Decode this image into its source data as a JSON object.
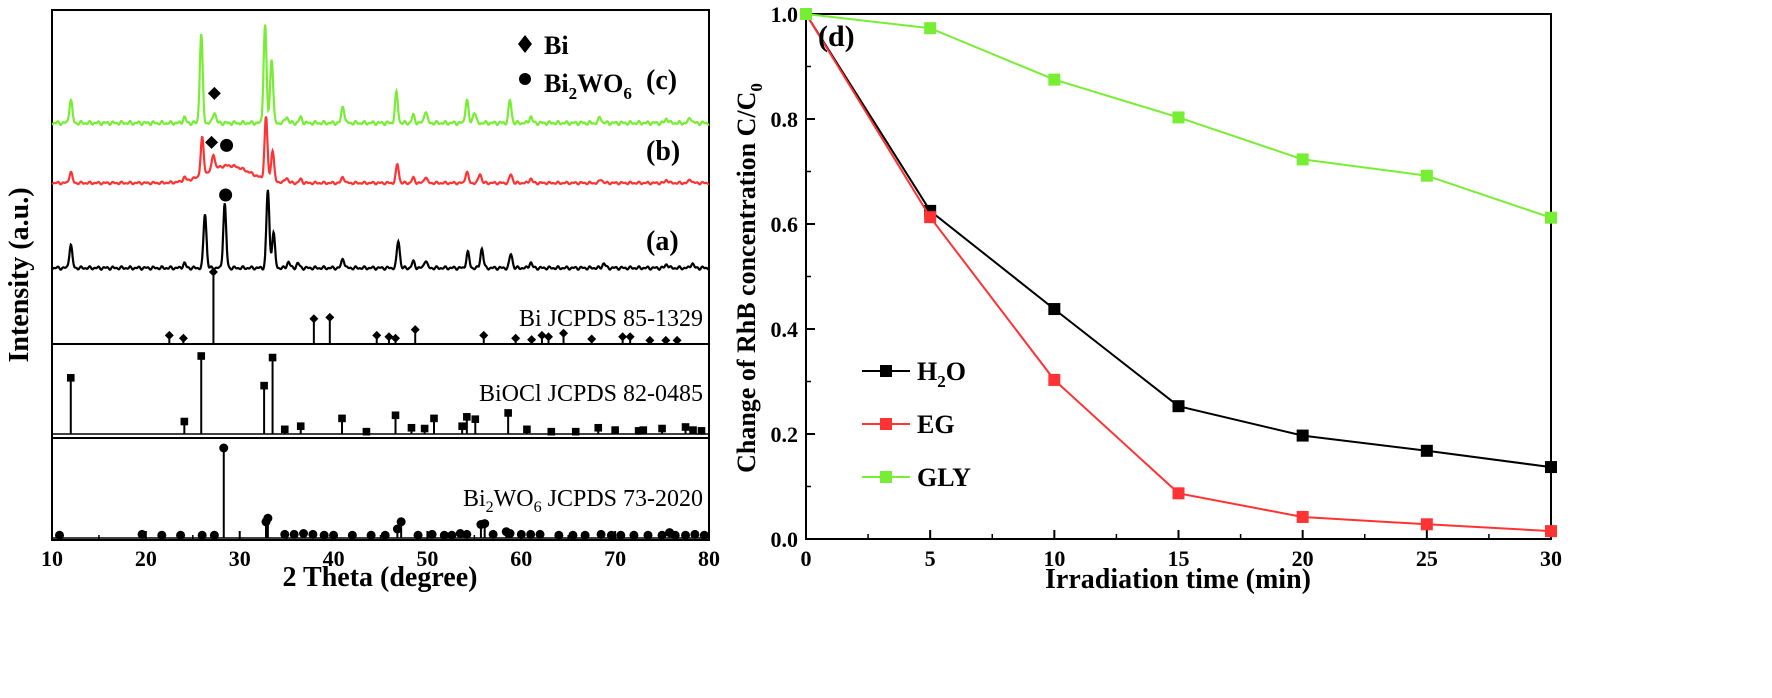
{
  "chart_data": [
    {
      "type": "line",
      "panel": "left",
      "xlabel": "2 Theta (degree)",
      "ylabel": "Intensity (a.u.)",
      "xlim": [
        10,
        80
      ],
      "xticks": [
        10,
        20,
        30,
        40,
        50,
        60,
        70,
        80
      ],
      "legend": {
        "bi": "Bi",
        "bi2wo6": "Bi2WO6"
      },
      "series": [
        {
          "id": "a",
          "name": "(a)",
          "color": "#000000",
          "offset": 0.0,
          "peaks": [
            [
              12.0,
              0.3
            ],
            [
              24.1,
              0.06
            ],
            [
              26.3,
              0.7
            ],
            [
              28.4,
              0.82
            ],
            [
              33.0,
              1.0
            ],
            [
              33.6,
              0.45
            ],
            [
              35.2,
              0.08
            ],
            [
              36.2,
              0.06
            ],
            [
              41.0,
              0.12
            ],
            [
              46.9,
              0.35
            ],
            [
              48.5,
              0.08
            ],
            [
              49.8,
              0.1
            ],
            [
              54.3,
              0.2
            ],
            [
              55.8,
              0.25
            ],
            [
              58.9,
              0.18
            ],
            [
              61.0,
              0.07
            ],
            [
              68.8,
              0.06
            ],
            [
              75.5,
              0.05
            ],
            [
              78.2,
              0.06
            ]
          ],
          "hump": [
            28.7,
            2.2,
            0.0
          ],
          "baseline": 0.0
        },
        {
          "id": "b",
          "name": "(b)",
          "color": "#ff3333",
          "offset": 1.5,
          "peaks": [
            [
              12.0,
              0.18
            ],
            [
              24.1,
              0.06
            ],
            [
              26.0,
              0.6
            ],
            [
              27.2,
              0.25
            ],
            [
              32.8,
              1.0
            ],
            [
              33.5,
              0.5
            ],
            [
              35.0,
              0.08
            ],
            [
              36.5,
              0.06
            ],
            [
              41.0,
              0.1
            ],
            [
              46.8,
              0.3
            ],
            [
              48.5,
              0.08
            ],
            [
              49.8,
              0.1
            ],
            [
              54.2,
              0.18
            ],
            [
              55.6,
              0.15
            ],
            [
              58.9,
              0.14
            ],
            [
              61.0,
              0.07
            ],
            [
              68.5,
              0.06
            ],
            [
              75.5,
              0.05
            ],
            [
              78.0,
              0.06
            ]
          ],
          "hump": [
            28.8,
            3.2,
            0.28
          ],
          "baseline": 0.0
        },
        {
          "id": "c",
          "name": "(c)",
          "color": "#77ee33",
          "offset": 2.6,
          "peaks": [
            [
              12.0,
              0.25
            ],
            [
              24.1,
              0.06
            ],
            [
              25.9,
              0.95
            ],
            [
              27.3,
              0.12
            ],
            [
              32.7,
              1.05
            ],
            [
              33.4,
              0.7
            ],
            [
              35.0,
              0.07
            ],
            [
              36.5,
              0.06
            ],
            [
              41.0,
              0.18
            ],
            [
              46.7,
              0.32
            ],
            [
              48.5,
              0.08
            ],
            [
              49.8,
              0.13
            ],
            [
              54.2,
              0.25
            ],
            [
              55.0,
              0.12
            ],
            [
              58.8,
              0.24
            ],
            [
              61.0,
              0.07
            ],
            [
              68.4,
              0.06
            ],
            [
              75.5,
              0.05
            ],
            [
              78.0,
              0.06
            ]
          ],
          "hump": [
            28.5,
            2.0,
            0.0
          ],
          "baseline": 0.0
        }
      ],
      "markers": [
        {
          "symbol": "diamond",
          "x": 27.3,
          "on": "c"
        },
        {
          "symbol": "dot",
          "x": 28.6,
          "on": "b"
        },
        {
          "symbol": "diamond",
          "x": 27.0,
          "on": "b"
        },
        {
          "symbol": "dot",
          "x": 28.5,
          "on": "a"
        }
      ],
      "references": [
        {
          "id": "bi",
          "label": "Bi JCPDS 85-1329",
          "symbol": "diamond",
          "lines": [
            [
              22.5,
              0.12
            ],
            [
              24.0,
              0.08
            ],
            [
              27.2,
              1.0
            ],
            [
              37.9,
              0.35
            ],
            [
              39.6,
              0.37
            ],
            [
              44.6,
              0.12
            ],
            [
              45.9,
              0.1
            ],
            [
              46.6,
              0.08
            ],
            [
              48.7,
              0.2
            ],
            [
              56.0,
              0.12
            ],
            [
              59.4,
              0.08
            ],
            [
              61.1,
              0.06
            ],
            [
              62.2,
              0.12
            ],
            [
              62.9,
              0.1
            ],
            [
              64.5,
              0.15
            ],
            [
              67.5,
              0.07
            ],
            [
              70.8,
              0.1
            ],
            [
              71.6,
              0.1
            ],
            [
              73.7,
              0.05
            ],
            [
              75.4,
              0.05
            ],
            [
              76.6,
              0.05
            ]
          ]
        },
        {
          "id": "biocl",
          "label": "BiOCl JCPDS 82-0485",
          "symbol": "square",
          "lines": [
            [
              12.0,
              0.72
            ],
            [
              24.1,
              0.16
            ],
            [
              25.9,
              1.0
            ],
            [
              32.6,
              0.62
            ],
            [
              33.5,
              0.98
            ],
            [
              34.8,
              0.06
            ],
            [
              36.5,
              0.1
            ],
            [
              40.9,
              0.2
            ],
            [
              43.5,
              0.03
            ],
            [
              46.6,
              0.24
            ],
            [
              48.3,
              0.08
            ],
            [
              49.7,
              0.07
            ],
            [
              50.7,
              0.2
            ],
            [
              53.7,
              0.1
            ],
            [
              54.2,
              0.22
            ],
            [
              55.1,
              0.19
            ],
            [
              58.6,
              0.27
            ],
            [
              60.6,
              0.06
            ],
            [
              63.2,
              0.03
            ],
            [
              65.8,
              0.03
            ],
            [
              68.2,
              0.08
            ],
            [
              70.0,
              0.05
            ],
            [
              72.5,
              0.04
            ],
            [
              73.0,
              0.05
            ],
            [
              75.0,
              0.07
            ],
            [
              77.5,
              0.09
            ],
            [
              78.3,
              0.05
            ],
            [
              79.2,
              0.04
            ]
          ]
        },
        {
          "id": "bi2wo6",
          "label": "Bi2WO6 JCPDS 73-2020",
          "symbol": "dot",
          "lines": [
            [
              10.8,
              0.03
            ],
            [
              19.6,
              0.04
            ],
            [
              21.7,
              0.03
            ],
            [
              23.7,
              0.03
            ],
            [
              26.0,
              0.03
            ],
            [
              27.3,
              0.03
            ],
            [
              28.3,
              1.0
            ],
            [
              32.8,
              0.18
            ],
            [
              33.0,
              0.22
            ],
            [
              34.8,
              0.04
            ],
            [
              35.8,
              0.04
            ],
            [
              36.8,
              0.05
            ],
            [
              37.8,
              0.04
            ],
            [
              39.0,
              0.03
            ],
            [
              40.0,
              0.03
            ],
            [
              42.0,
              0.03
            ],
            [
              44.0,
              0.03
            ],
            [
              45.5,
              0.03
            ],
            [
              46.8,
              0.1
            ],
            [
              47.2,
              0.18
            ],
            [
              49.0,
              0.03
            ],
            [
              50.5,
              0.04
            ],
            [
              51.8,
              0.03
            ],
            [
              52.6,
              0.03
            ],
            [
              53.5,
              0.05
            ],
            [
              54.2,
              0.04
            ],
            [
              55.7,
              0.15
            ],
            [
              56.1,
              0.16
            ],
            [
              57.0,
              0.04
            ],
            [
              58.4,
              0.07
            ],
            [
              58.8,
              0.05
            ],
            [
              60.0,
              0.04
            ],
            [
              61.0,
              0.04
            ],
            [
              62.0,
              0.04
            ],
            [
              64.0,
              0.03
            ],
            [
              65.5,
              0.03
            ],
            [
              66.8,
              0.03
            ],
            [
              68.5,
              0.04
            ],
            [
              69.6,
              0.03
            ],
            [
              70.6,
              0.03
            ],
            [
              72.0,
              0.03
            ],
            [
              73.5,
              0.03
            ],
            [
              75.0,
              0.03
            ],
            [
              75.8,
              0.06
            ],
            [
              76.4,
              0.03
            ],
            [
              77.5,
              0.03
            ],
            [
              78.5,
              0.04
            ],
            [
              79.5,
              0.03
            ]
          ]
        }
      ]
    },
    {
      "type": "line",
      "panel": "right",
      "panel_label": "(d)",
      "xlabel": "Irradiation time (min)",
      "ylabel": "Change of RhB concentration C/C",
      "ylabel_sub": "0",
      "xlim": [
        0,
        30
      ],
      "ylim": [
        0,
        1.0
      ],
      "xticks": [
        0,
        5,
        10,
        15,
        20,
        25,
        30
      ],
      "yticks": [
        "0.0",
        "0.2",
        "0.4",
        "0.6",
        "0.8",
        "1.0"
      ],
      "legend_position": "lower-left",
      "x": [
        0,
        5,
        10,
        15,
        20,
        25,
        30
      ],
      "series": [
        {
          "name": "H2O",
          "label_main": "H",
          "label_sub": "2",
          "label_tail": "O",
          "color": "#000000",
          "values": [
            1.0,
            0.625,
            0.438,
            0.253,
            0.197,
            0.168,
            0.137
          ]
        },
        {
          "name": "EG",
          "label_main": "EG",
          "label_sub": "",
          "label_tail": "",
          "color": "#ff3333",
          "values": [
            1.0,
            0.613,
            0.303,
            0.087,
            0.042,
            0.028,
            0.015
          ]
        },
        {
          "name": "GLY",
          "label_main": "GLY",
          "label_sub": "",
          "label_tail": "",
          "color": "#77ee33",
          "values": [
            1.0,
            0.973,
            0.875,
            0.803,
            0.723,
            0.692,
            0.612
          ]
        }
      ]
    }
  ]
}
